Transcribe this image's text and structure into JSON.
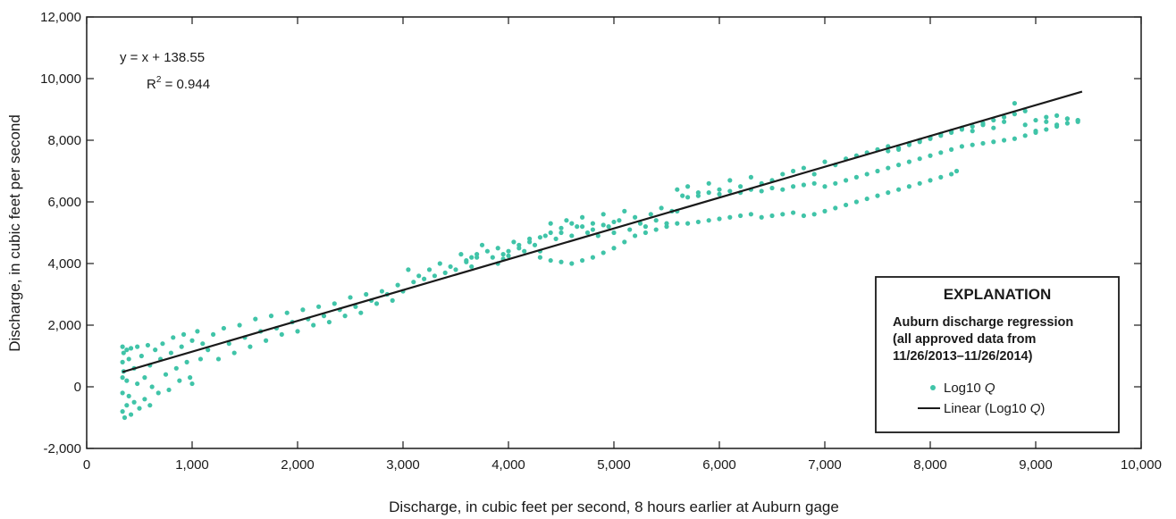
{
  "chart_data": {
    "type": "scatter",
    "xlabel": "Discharge, in cubic feet per second, 8 hours earlier at Auburn gage",
    "ylabel": "Discharge, in cubic feet per second",
    "xlim": [
      0,
      10000
    ],
    "ylim": [
      -2000,
      12000
    ],
    "x_ticks": [
      0,
      1000,
      2000,
      3000,
      4000,
      5000,
      6000,
      7000,
      8000,
      9000,
      10000
    ],
    "x_tick_labels": [
      "0",
      "1,000",
      "2,000",
      "3,000",
      "4,000",
      "5,000",
      "6,000",
      "7,000",
      "8,000",
      "9,000",
      "10,000"
    ],
    "y_ticks": [
      -2000,
      0,
      2000,
      4000,
      6000,
      8000,
      10000,
      12000
    ],
    "y_tick_labels": [
      "-2,000",
      "0",
      "2,000",
      "4,000",
      "6,000",
      "8,000",
      "10,000",
      "12,000"
    ],
    "grid": false,
    "legend_position": "lower-right",
    "equation": {
      "line1": "y = x + 138.55",
      "line2_prefix": "R",
      "line2_sup": "2",
      "line2_suffix": " = 0.944"
    },
    "legend": {
      "heading": "EXPLANATION",
      "subtitle_lines": [
        "Auburn discharge regression",
        "(all approved data from",
        "11/26/2013–11/26/2014)"
      ],
      "entries": [
        {
          "kind": "marker",
          "label_prefix": "Log10 ",
          "label_italic": "Q",
          "label_suffix": ""
        },
        {
          "kind": "line",
          "label_prefix": "Linear (Log10 ",
          "label_italic": "Q",
          "label_suffix": ")"
        }
      ]
    },
    "series": [
      {
        "kind": "scatter",
        "color": "#40c4a8",
        "points": [
          [
            340,
            1300
          ],
          [
            340,
            800
          ],
          [
            340,
            300
          ],
          [
            340,
            -200
          ],
          [
            340,
            -800
          ],
          [
            350,
            1100
          ],
          [
            350,
            500
          ],
          [
            360,
            -1000
          ],
          [
            380,
            1200
          ],
          [
            380,
            200
          ],
          [
            380,
            -600
          ],
          [
            400,
            900
          ],
          [
            400,
            -300
          ],
          [
            420,
            1250
          ],
          [
            420,
            -900
          ],
          [
            450,
            600
          ],
          [
            450,
            -500
          ],
          [
            480,
            1300
          ],
          [
            480,
            100
          ],
          [
            500,
            -700
          ],
          [
            520,
            1000
          ],
          [
            550,
            300
          ],
          [
            550,
            -400
          ],
          [
            580,
            1350
          ],
          [
            600,
            700
          ],
          [
            600,
            -600
          ],
          [
            620,
            0
          ],
          [
            650,
            1200
          ],
          [
            680,
            -200
          ],
          [
            700,
            900
          ],
          [
            720,
            1400
          ],
          [
            750,
            400
          ],
          [
            780,
            -100
          ],
          [
            800,
            1100
          ],
          [
            820,
            1600
          ],
          [
            850,
            600
          ],
          [
            880,
            200
          ],
          [
            900,
            1300
          ],
          [
            920,
            1700
          ],
          [
            950,
            800
          ],
          [
            980,
            300
          ],
          [
            1000,
            1500
          ],
          [
            1000,
            100
          ],
          [
            1050,
            1800
          ],
          [
            1080,
            900
          ],
          [
            1100,
            1400
          ],
          [
            1150,
            1200
          ],
          [
            1200,
            1700
          ],
          [
            1250,
            900
          ],
          [
            1300,
            1900
          ],
          [
            1350,
            1400
          ],
          [
            1400,
            1100
          ],
          [
            1450,
            2000
          ],
          [
            1500,
            1600
          ],
          [
            1550,
            1300
          ],
          [
            1600,
            2200
          ],
          [
            1650,
            1800
          ],
          [
            1700,
            1500
          ],
          [
            1750,
            2300
          ],
          [
            1800,
            1900
          ],
          [
            1850,
            1700
          ],
          [
            1900,
            2400
          ],
          [
            1950,
            2100
          ],
          [
            2000,
            1800
          ],
          [
            2050,
            2500
          ],
          [
            2100,
            2200
          ],
          [
            2150,
            2000
          ],
          [
            2200,
            2600
          ],
          [
            2250,
            2300
          ],
          [
            2300,
            2100
          ],
          [
            2350,
            2700
          ],
          [
            2400,
            2500
          ],
          [
            2450,
            2300
          ],
          [
            2500,
            2900
          ],
          [
            2550,
            2600
          ],
          [
            2600,
            2400
          ],
          [
            2650,
            3000
          ],
          [
            2700,
            2800
          ],
          [
            2750,
            2700
          ],
          [
            2800,
            3100
          ],
          [
            2850,
            3000
          ],
          [
            2900,
            2800
          ],
          [
            2950,
            3300
          ],
          [
            3000,
            3100
          ],
          [
            3050,
            3800
          ],
          [
            3100,
            3400
          ],
          [
            3150,
            3600
          ],
          [
            3200,
            3500
          ],
          [
            3250,
            3800
          ],
          [
            3300,
            3600
          ],
          [
            3350,
            4000
          ],
          [
            3400,
            3700
          ],
          [
            3450,
            3900
          ],
          [
            3500,
            3800
          ],
          [
            3550,
            4300
          ],
          [
            3600,
            4100
          ],
          [
            3650,
            3900
          ],
          [
            3700,
            4200
          ],
          [
            3750,
            4600
          ],
          [
            3800,
            4400
          ],
          [
            3850,
            4200
          ],
          [
            3900,
            4500
          ],
          [
            3950,
            4300
          ],
          [
            4000,
            4400
          ],
          [
            4050,
            4700
          ],
          [
            4100,
            4500
          ],
          [
            4150,
            4400
          ],
          [
            4200,
            4800
          ],
          [
            4250,
            4600
          ],
          [
            4300,
            4400
          ],
          [
            4350,
            4900
          ],
          [
            4400,
            5300
          ],
          [
            4450,
            4800
          ],
          [
            4500,
            5000
          ],
          [
            4550,
            5400
          ],
          [
            4600,
            4900
          ],
          [
            4650,
            5200
          ],
          [
            4700,
            5500
          ],
          [
            4750,
            5000
          ],
          [
            4800,
            5300
          ],
          [
            4850,
            4900
          ],
          [
            4900,
            5600
          ],
          [
            4950,
            5200
          ],
          [
            5000,
            5000
          ],
          [
            5050,
            5400
          ],
          [
            5100,
            5700
          ],
          [
            5150,
            5100
          ],
          [
            5200,
            5500
          ],
          [
            5250,
            5300
          ],
          [
            5300,
            5200
          ],
          [
            5350,
            5600
          ],
          [
            5400,
            5400
          ],
          [
            5450,
            5800
          ],
          [
            5500,
            5300
          ],
          [
            5550,
            5700
          ],
          [
            5600,
            6400
          ],
          [
            5650,
            6200
          ],
          [
            5700,
            6500
          ],
          [
            5800,
            6300
          ],
          [
            5900,
            6600
          ],
          [
            6000,
            6400
          ],
          [
            6100,
            6700
          ],
          [
            6200,
            6500
          ],
          [
            6300,
            6800
          ],
          [
            6400,
            6600
          ],
          [
            6500,
            6700
          ],
          [
            6600,
            6900
          ],
          [
            6700,
            7000
          ],
          [
            6800,
            7100
          ],
          [
            6900,
            6900
          ],
          [
            7000,
            7300
          ],
          [
            7100,
            7200
          ],
          [
            7200,
            7400
          ],
          [
            7300,
            7500
          ],
          [
            7400,
            7600
          ],
          [
            7500,
            7700
          ],
          [
            7600,
            7800
          ],
          [
            7700,
            7700
          ],
          [
            7800,
            7900
          ],
          [
            7900,
            8000
          ],
          [
            8000,
            8100
          ],
          [
            8100,
            8200
          ],
          [
            8200,
            8300
          ],
          [
            8300,
            8400
          ],
          [
            8400,
            8300
          ],
          [
            8500,
            8500
          ],
          [
            8600,
            8400
          ],
          [
            8700,
            8600
          ],
          [
            8800,
            9200
          ],
          [
            8900,
            8500
          ],
          [
            9000,
            8300
          ],
          [
            9100,
            8600
          ],
          [
            9200,
            8500
          ],
          [
            9300,
            8700
          ],
          [
            9400,
            8600
          ],
          [
            3900,
            4000
          ],
          [
            3950,
            4150
          ],
          [
            4000,
            4250
          ],
          [
            3600,
            4050
          ],
          [
            3650,
            4200
          ],
          [
            3700,
            4300
          ],
          [
            4100,
            4600
          ],
          [
            4200,
            4700
          ],
          [
            4300,
            4850
          ],
          [
            4400,
            5000
          ],
          [
            4500,
            5150
          ],
          [
            4600,
            5300
          ],
          [
            4700,
            5200
          ],
          [
            4800,
            5100
          ],
          [
            4900,
            5250
          ],
          [
            5000,
            5350
          ],
          [
            4300,
            4200
          ],
          [
            4400,
            4100
          ],
          [
            4500,
            4050
          ],
          [
            4600,
            4000
          ],
          [
            4700,
            4100
          ],
          [
            4800,
            4200
          ],
          [
            4900,
            4350
          ],
          [
            5000,
            4500
          ],
          [
            5100,
            4700
          ],
          [
            5200,
            4900
          ],
          [
            5300,
            5000
          ],
          [
            5400,
            5100
          ],
          [
            5500,
            5200
          ],
          [
            5600,
            5300
          ],
          [
            5700,
            5300
          ],
          [
            5800,
            5350
          ],
          [
            5900,
            5400
          ],
          [
            6000,
            5450
          ],
          [
            6100,
            5500
          ],
          [
            6200,
            5550
          ],
          [
            6300,
            5600
          ],
          [
            6400,
            5500
          ],
          [
            6500,
            5550
          ],
          [
            6600,
            5600
          ],
          [
            6700,
            5650
          ],
          [
            6800,
            5550
          ],
          [
            6900,
            5600
          ],
          [
            7000,
            5700
          ],
          [
            7100,
            5800
          ],
          [
            7200,
            5900
          ],
          [
            7300,
            6000
          ],
          [
            7400,
            6100
          ],
          [
            7500,
            6200
          ],
          [
            7600,
            6300
          ],
          [
            7700,
            6400
          ],
          [
            7800,
            6500
          ],
          [
            7900,
            6600
          ],
          [
            8000,
            6700
          ],
          [
            8100,
            6800
          ],
          [
            8200,
            6900
          ],
          [
            8250,
            7000
          ],
          [
            5600,
            5700
          ],
          [
            5700,
            6150
          ],
          [
            5800,
            6200
          ],
          [
            5900,
            6300
          ],
          [
            6000,
            6250
          ],
          [
            6100,
            6350
          ],
          [
            6200,
            6300
          ],
          [
            6300,
            6400
          ],
          [
            6400,
            6350
          ],
          [
            6500,
            6450
          ],
          [
            6600,
            6400
          ],
          [
            6700,
            6500
          ],
          [
            6800,
            6550
          ],
          [
            6900,
            6600
          ],
          [
            7000,
            6500
          ],
          [
            7100,
            6600
          ],
          [
            7200,
            6700
          ],
          [
            7300,
            6800
          ],
          [
            7400,
            6900
          ],
          [
            7500,
            7000
          ],
          [
            7600,
            7100
          ],
          [
            7700,
            7200
          ],
          [
            7800,
            7300
          ],
          [
            7900,
            7400
          ],
          [
            8000,
            7500
          ],
          [
            8100,
            7600
          ],
          [
            8200,
            7700
          ],
          [
            8300,
            7800
          ],
          [
            8400,
            7850
          ],
          [
            8500,
            7900
          ],
          [
            8600,
            7950
          ],
          [
            8700,
            8000
          ],
          [
            8800,
            8050
          ],
          [
            8900,
            8150
          ],
          [
            9000,
            8250
          ],
          [
            9100,
            8350
          ],
          [
            9200,
            8450
          ],
          [
            9300,
            8550
          ],
          [
            9400,
            8650
          ],
          [
            7600,
            7650
          ],
          [
            7700,
            7750
          ],
          [
            7800,
            7850
          ],
          [
            7900,
            7950
          ],
          [
            8000,
            8050
          ],
          [
            8100,
            8150
          ],
          [
            8200,
            8250
          ],
          [
            8300,
            8350
          ],
          [
            8400,
            8450
          ],
          [
            8500,
            8550
          ],
          [
            8600,
            8650
          ],
          [
            8700,
            8750
          ],
          [
            8800,
            8850
          ],
          [
            8900,
            8950
          ],
          [
            9000,
            8650
          ],
          [
            9100,
            8750
          ],
          [
            9200,
            8800
          ],
          [
            9300,
            8700
          ],
          [
            9400,
            8650
          ]
        ]
      },
      {
        "kind": "line",
        "color": "#1a1a1a",
        "points": [
          [
            340,
            478.55
          ],
          [
            9440,
            9578.55
          ]
        ]
      }
    ]
  }
}
